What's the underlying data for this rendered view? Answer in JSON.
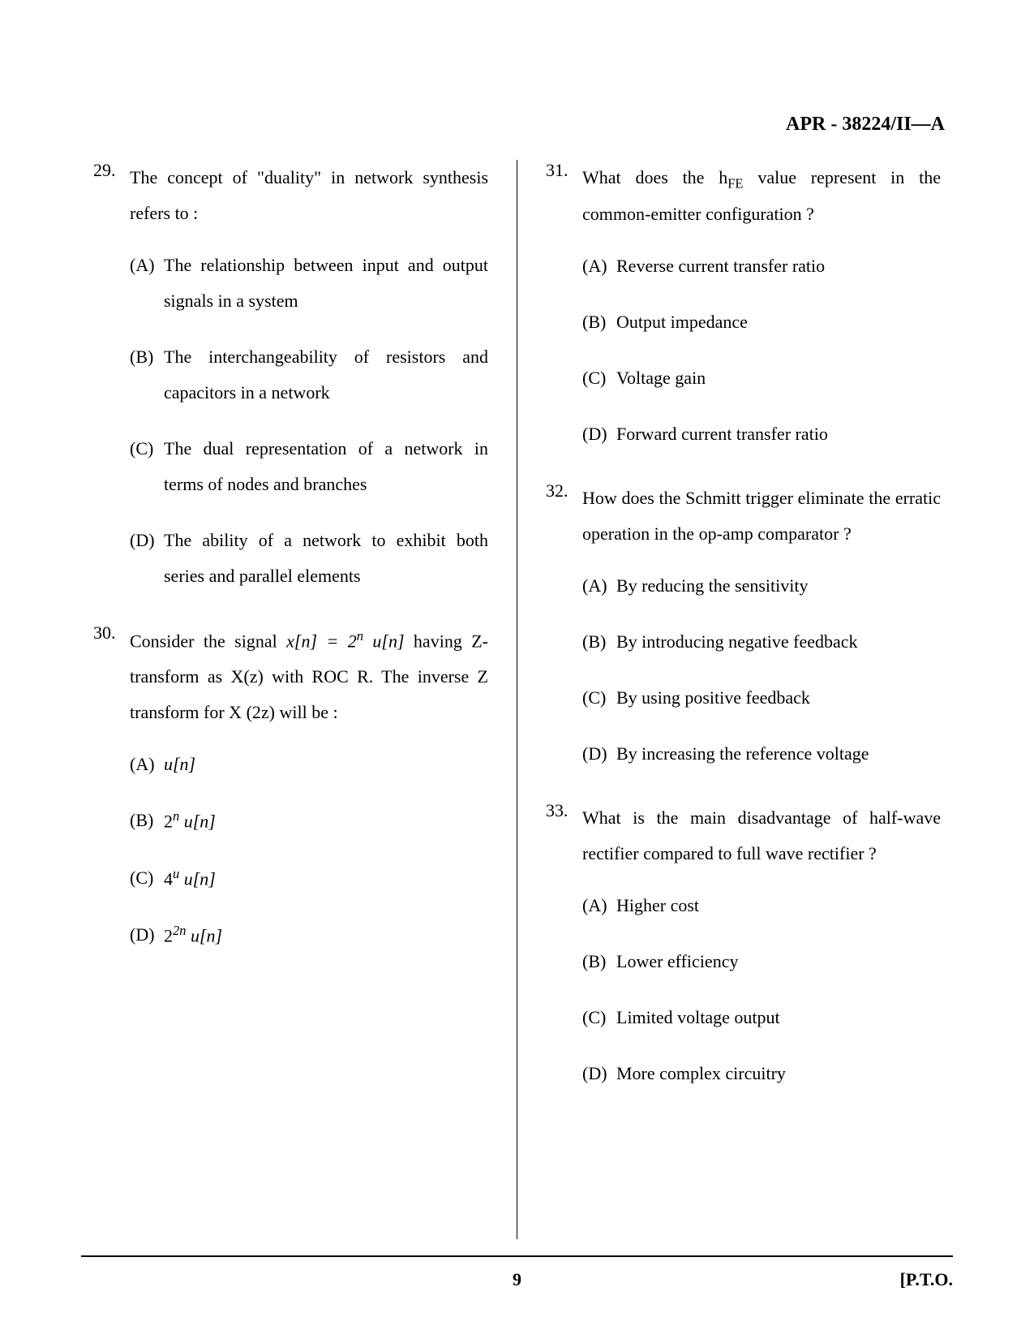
{
  "header": {
    "code": "APR - 38224/II—A"
  },
  "footer": {
    "page_number": "9",
    "pto": "[P.T.O."
  },
  "left_column": {
    "questions": [
      {
        "number": "29.",
        "text": "The concept of \"duality\" in network synthesis refers to :",
        "options": [
          {
            "label": "(A)",
            "text": "The relationship between input and output signals in a system"
          },
          {
            "label": "(B)",
            "text": "The interchangeability of resistors and capacitors in a network"
          },
          {
            "label": "(C)",
            "text": "The dual representation of a network in terms of nodes and branches"
          },
          {
            "label": "(D)",
            "text": "The ability of a network to exhibit both series and parallel elements"
          }
        ]
      },
      {
        "number": "30.",
        "text_prefix": "Consider the signal ",
        "formula_1": "x[n] = 2",
        "formula_1_sup": "n",
        "formula_1_suffix": " u[n]",
        "text_mid": " having Z-transform as X(z) with ROC R. The inverse Z transform for X (2z) will be :",
        "options": [
          {
            "label": "(A)",
            "text_italic": "u[n]"
          },
          {
            "label": "(B)",
            "base": "2",
            "sup": "n",
            "suffix": " u[n]"
          },
          {
            "label": "(C)",
            "base": "4",
            "sup": "u",
            "suffix": " u[n]"
          },
          {
            "label": "(D)",
            "base": "2",
            "sup": "2n",
            "suffix": " u[n]"
          }
        ]
      }
    ]
  },
  "right_column": {
    "questions": [
      {
        "number": "31.",
        "text_prefix": "What does the h",
        "text_sub": "FE",
        "text_suffix": " value represent in the common-emitter configuration ?",
        "options": [
          {
            "label": "(A)",
            "text": "Reverse current transfer ratio"
          },
          {
            "label": "(B)",
            "text": "Output impedance"
          },
          {
            "label": "(C)",
            "text": "Voltage gain"
          },
          {
            "label": "(D)",
            "text": "Forward current transfer ratio"
          }
        ]
      },
      {
        "number": "32.",
        "text": "How does the Schmitt trigger eliminate the erratic operation in the op-amp comparator ?",
        "options": [
          {
            "label": "(A)",
            "text": "By reducing the sensitivity"
          },
          {
            "label": "(B)",
            "text": "By introducing negative feedback"
          },
          {
            "label": "(C)",
            "text": "By using positive feedback"
          },
          {
            "label": "(D)",
            "text": "By increasing the reference voltage"
          }
        ]
      },
      {
        "number": "33.",
        "text": "What is the main disadvantage of half-wave rectifier compared to full wave rectifier ?",
        "options": [
          {
            "label": "(A)",
            "text": "Higher cost"
          },
          {
            "label": "(B)",
            "text": "Lower efficiency"
          },
          {
            "label": "(C)",
            "text": "Limited voltage output"
          },
          {
            "label": "(D)",
            "text": "More complex circuitry"
          }
        ]
      }
    ]
  }
}
